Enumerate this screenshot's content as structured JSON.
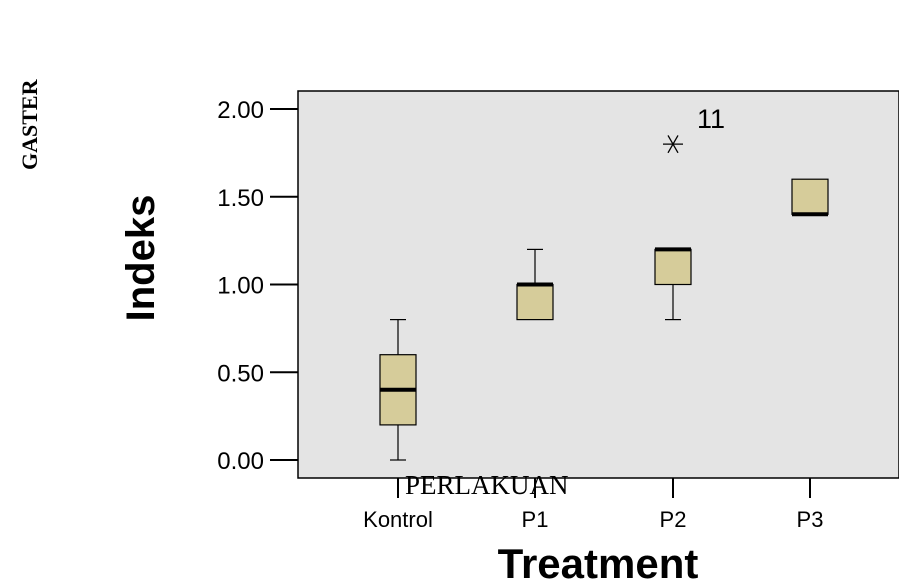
{
  "side_label": "GASTER",
  "chart_data": {
    "type": "boxplot",
    "categories": [
      "Kontrol",
      "P1",
      "P2",
      "P3"
    ],
    "boxes": [
      {
        "category": "Kontrol",
        "whisker_low": 0.0,
        "q1": 0.2,
        "median": 0.4,
        "q3": 0.6,
        "whisker_high": 0.8
      },
      {
        "category": "P1",
        "whisker_low": 0.8,
        "q1": 0.8,
        "median": 1.0,
        "q3": 1.0,
        "whisker_high": 1.2
      },
      {
        "category": "P2",
        "whisker_low": 0.8,
        "q1": 1.0,
        "median": 1.2,
        "q3": 1.2,
        "whisker_high": 1.2
      },
      {
        "category": "P3",
        "whisker_low": 1.4,
        "q1": 1.4,
        "median": 1.4,
        "q3": 1.6,
        "whisker_high": 1.6
      }
    ],
    "outliers": [
      {
        "category": "P2",
        "value": 1.8,
        "label": "11",
        "marker": "*"
      }
    ],
    "ylabel": "Indeks",
    "xlabel": "Treatment",
    "overlay_text": "PERLAKUAN",
    "ylim": [
      0.0,
      2.0
    ],
    "yticks": [
      "0.00",
      "0.50",
      "1.00",
      "1.50",
      "2.00"
    ],
    "colors": {
      "plot_background": "#e4e4e4",
      "box_fill": "#d6cc9a",
      "stroke": "#000000"
    },
    "grid": false
  }
}
